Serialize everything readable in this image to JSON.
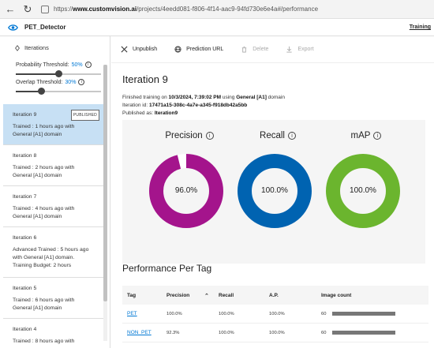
{
  "browser": {
    "url_prefix": "https://",
    "url_host": "www.customvision.ai",
    "url_path": "/projects/4eedd081-f806-4f14-aac9-94fd730e6e4a#/performance"
  },
  "header": {
    "project_name": "PET_Detector",
    "training_link": "Training"
  },
  "sidebar": {
    "iterations_label": "Iterations",
    "probability_threshold": {
      "label": "Probability Threshold:",
      "value": "50%",
      "level": 0.5
    },
    "overlap_threshold": {
      "label": "Overlap Threshold:",
      "value": "30%",
      "level": 0.3
    },
    "iterations": [
      {
        "name": "Iteration 9",
        "line1": "Trained : 1 hours ago with",
        "line2": "General [A1] domain",
        "line3": "",
        "badge": "PUBLISHED",
        "selected": true
      },
      {
        "name": "Iteration 8",
        "line1": "Trained : 2 hours ago with",
        "line2": "General [A1] domain",
        "line3": "",
        "badge": "",
        "selected": false
      },
      {
        "name": "Iteration 7",
        "line1": "Trained : 4 hours ago with",
        "line2": "General [A1] domain",
        "line3": "",
        "badge": "",
        "selected": false
      },
      {
        "name": "Iteration 6",
        "line1": "Advanced Trained : 5 hours ago",
        "line2": "with General [A1] domain.",
        "line3": "Training Budget: 2 hours",
        "badge": "",
        "selected": false
      },
      {
        "name": "Iteration 5",
        "line1": "Trained : 6 hours ago with",
        "line2": "General [A1] domain",
        "line3": "",
        "badge": "",
        "selected": false
      },
      {
        "name": "Iteration 4",
        "line1": "Trained : 8 hours ago with",
        "line2": "",
        "line3": "",
        "badge": "",
        "selected": false
      }
    ]
  },
  "toolbar": {
    "unpublish": "Unpublish",
    "prediction_url": "Prediction URL",
    "delete": "Delete",
    "export": "Export"
  },
  "main": {
    "title": "Iteration 9",
    "finished_prefix": "Finished training on ",
    "finished_date": "10/3/2024, 7:39:02 PM",
    "finished_mid": " using ",
    "finished_domain": "General [A1]",
    "finished_suffix": " domain",
    "iteration_id_label": "Iteration id: ",
    "iteration_id": "17471a15-308c-4a7e-a345-f918db42a5bb",
    "published_label": "Published as: ",
    "published_name": "Iteration9"
  },
  "metrics": [
    {
      "label": "Precision",
      "value": "96.0%",
      "fraction": 0.96,
      "color": "#a4148c"
    },
    {
      "label": "Recall",
      "value": "100.0%",
      "fraction": 1.0,
      "color": "#0063b1"
    },
    {
      "label": "mAP",
      "value": "100.0%",
      "fraction": 1.0,
      "color": "#6bb52e"
    }
  ],
  "performance": {
    "title": "Performance Per Tag",
    "columns": {
      "tag": "Tag",
      "precision": "Precision",
      "recall": "Recall",
      "ap": "A.P.",
      "image_count": "Image count"
    },
    "rows": [
      {
        "tag": "PET",
        "precision": "100.0%",
        "recall": "100.0%",
        "ap": "100.0%",
        "image_count": "60",
        "bar_level": 1.0
      },
      {
        "tag": "NON_PET",
        "precision": "92.3%",
        "recall": "100.0%",
        "ap": "100.0%",
        "image_count": "60",
        "bar_level": 1.0
      }
    ]
  }
}
